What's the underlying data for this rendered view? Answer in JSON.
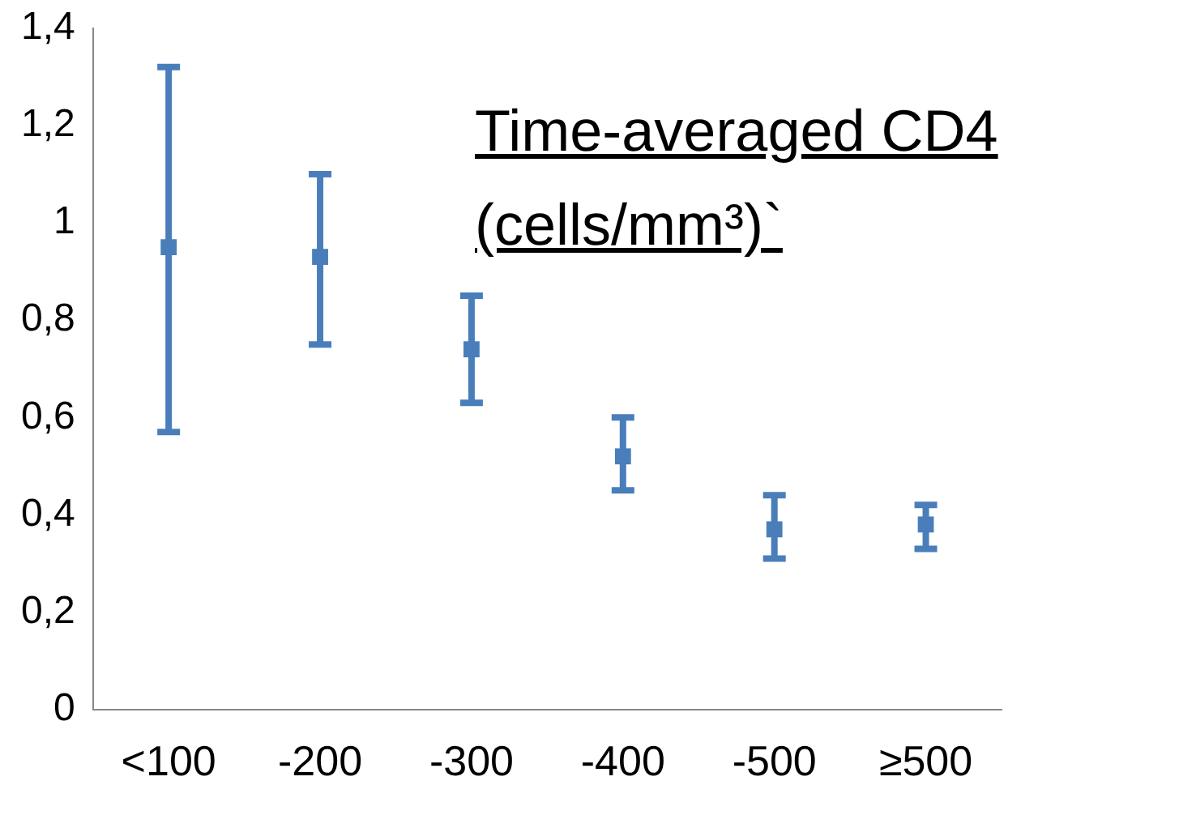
{
  "chart_data": {
    "type": "scatter",
    "title": "Time-averaged CD4 (cells/mm³)`",
    "categories": [
      "<100",
      "-200",
      "-300",
      "-400",
      "-500",
      "≥500"
    ],
    "values": [
      0.95,
      0.93,
      0.74,
      0.52,
      0.37,
      0.38
    ],
    "errors": [
      [
        0.57,
        1.32
      ],
      [
        0.75,
        1.1
      ],
      [
        0.63,
        0.85
      ],
      [
        0.45,
        0.6
      ],
      [
        0.31,
        0.44
      ],
      [
        0.33,
        0.42
      ]
    ],
    "color": "#4a7ebb",
    "marker": "square",
    "grid": false,
    "legend": false,
    "ylim": [
      0,
      1.4
    ],
    "yticks": [
      0,
      {
        "value": 0.2,
        "label": "0,2"
      },
      {
        "value": 0.4,
        "label": "0,4"
      },
      {
        "value": 0.6,
        "label": "0,6"
      },
      {
        "value": 0.8,
        "label": "0,8"
      },
      1,
      {
        "value": 1.2,
        "label": "1,2"
      },
      {
        "value": 1.4,
        "label": "1,4"
      }
    ]
  }
}
